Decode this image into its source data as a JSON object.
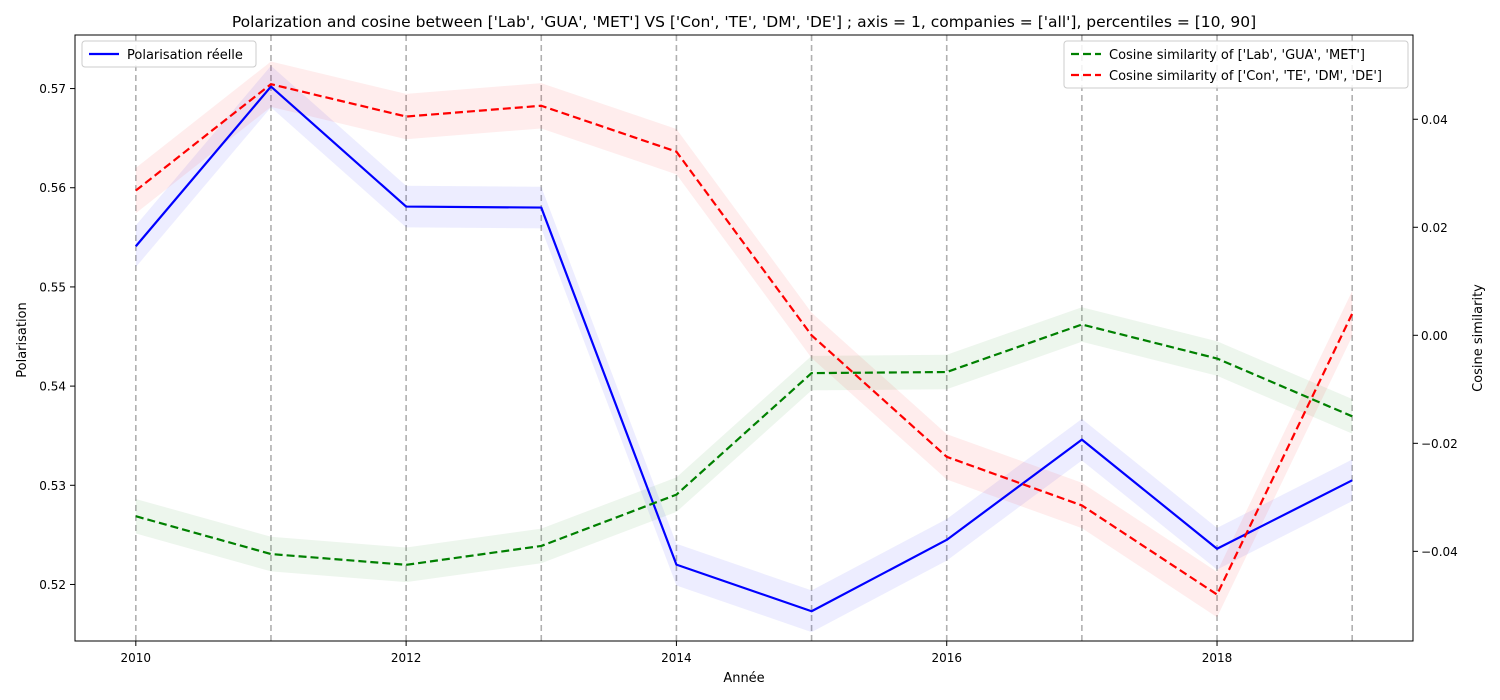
{
  "chart_data": {
    "type": "line",
    "title": "Polarization and cosine between ['Lab', 'GUA', 'MET'] VS ['Con', 'TE', 'DM', 'DE'] ; axis = 1, companies = ['all'], percentiles = [10, 90]",
    "xlabel": "Année",
    "ylabel_left": "Polarisation",
    "ylabel_right": "Cosine similarity",
    "x": [
      2010,
      2011,
      2012,
      2013,
      2014,
      2015,
      2016,
      2017,
      2018,
      2019
    ],
    "xlim": [
      2009.55,
      2019.45
    ],
    "x_ticks": [
      2010,
      2012,
      2014,
      2016,
      2018
    ],
    "x_tick_labels": [
      "2010",
      "2012",
      "2014",
      "2016",
      "2018"
    ],
    "ylim_left": [
      0.5143,
      0.5754
    ],
    "y_ticks_left": [
      0.52,
      0.53,
      0.54,
      0.55,
      0.56,
      0.57
    ],
    "y_tick_labels_left": [
      "0.52",
      "0.53",
      "0.54",
      "0.55",
      "0.56",
      "0.57"
    ],
    "ylim_right": [
      -0.0566,
      0.0556
    ],
    "y_ticks_right": [
      -0.04,
      -0.02,
      0.0,
      0.02,
      0.04
    ],
    "y_tick_labels_right": [
      "−0.04",
      "−0.02",
      "0.00",
      "0.02",
      "0.04"
    ],
    "vertical_grid_lines": [
      2010,
      2011,
      2012,
      2013,
      2014,
      2015,
      2016,
      2017,
      2018,
      2019
    ],
    "series": [
      {
        "name": "Polarisation réelle",
        "axis": "left",
        "color": "#0000ff",
        "linestyle": "solid",
        "values": [
          0.5541,
          0.5702,
          0.5581,
          0.558,
          0.522,
          0.5173,
          0.5245,
          0.5346,
          0.5236,
          0.5305
        ],
        "band": 0.0021,
        "band_color": "#0000ff"
      },
      {
        "name": "Cosine similarity of ['Lab', 'GUA', 'MET']",
        "axis": "right",
        "color": "#008000",
        "linestyle": "dashed",
        "values": [
          -0.0335,
          -0.0405,
          -0.0425,
          -0.039,
          -0.0295,
          -0.007,
          -0.0068,
          0.002,
          -0.0043,
          -0.015
        ],
        "band": 0.0032,
        "band_color": "#008000"
      },
      {
        "name": "Cosine similarity of ['Con', 'TE', 'DM', 'DE']",
        "axis": "right",
        "color": "#ff0000",
        "linestyle": "dashed",
        "values": [
          0.0268,
          0.0465,
          0.0405,
          0.0425,
          0.034,
          0.0,
          -0.0225,
          -0.0315,
          -0.048,
          0.004
        ],
        "band": 0.0042,
        "band_color": "#ff0000"
      }
    ],
    "legend_left": {
      "placement": "top-left",
      "entries": [
        "Polarisation réelle"
      ]
    },
    "legend_right": {
      "placement": "top-right",
      "entries": [
        "Cosine similarity of ['Lab', 'GUA', 'MET']",
        "Cosine similarity of ['Con', 'TE', 'DM', 'DE']"
      ]
    }
  }
}
